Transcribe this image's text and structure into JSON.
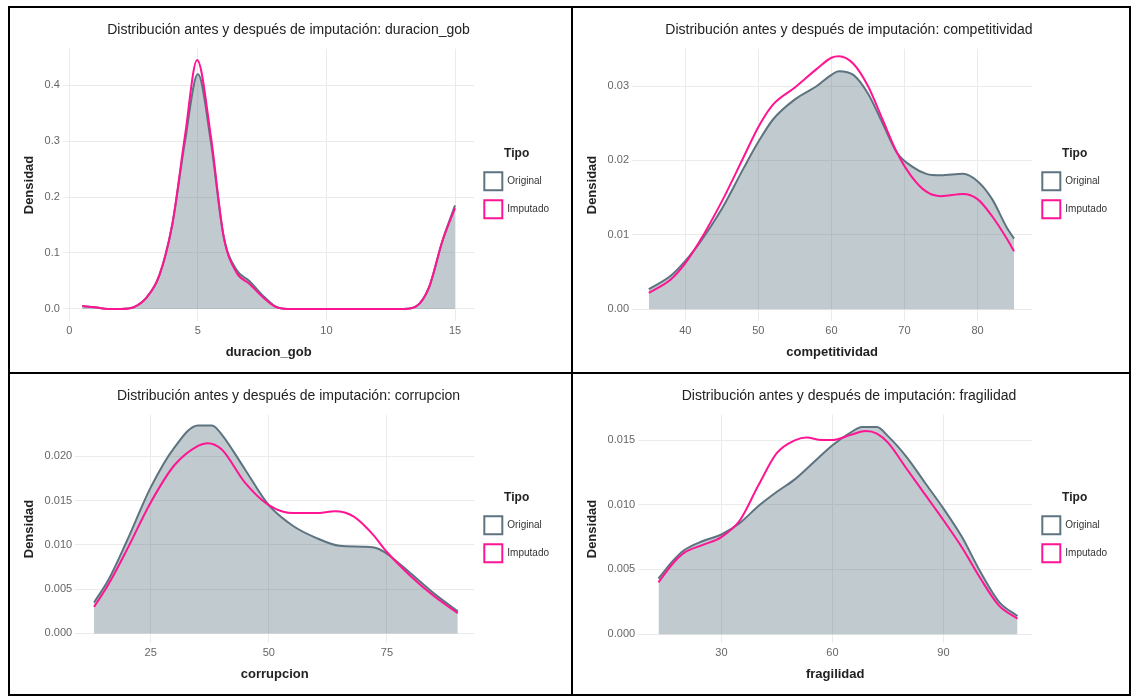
{
  "chart_data": [
    {
      "type": "area",
      "title": "Distribución antes y después de imputación: duracion_gob",
      "xlabel": "duracion_gob",
      "ylabel": "Densidad",
      "legend_title": "Tipo",
      "legend": "right",
      "grid": true,
      "xlim": [
        -0.25,
        15.75
      ],
      "ylim": [
        -0.022,
        0.465
      ],
      "xticks": [
        0,
        5,
        10,
        15
      ],
      "yticks": [
        {
          "value": 0,
          "label": "0.0"
        },
        0.1,
        0.2,
        0.3,
        0.4
      ],
      "series": [
        {
          "name": "Original",
          "color": "#5d7380",
          "x": [
            0.5,
            1,
            1.5,
            2,
            2.5,
            3,
            3.5,
            4,
            4.5,
            5,
            5.5,
            6,
            6.5,
            7,
            7.5,
            8,
            8.5,
            9,
            10,
            11,
            12,
            13,
            13.5,
            14,
            14.5,
            15
          ],
          "values": [
            0.005,
            0.003,
            0,
            0,
            0.003,
            0.02,
            0.06,
            0.15,
            0.3,
            0.42,
            0.3,
            0.13,
            0.07,
            0.05,
            0.025,
            0.005,
            0,
            0,
            0,
            0,
            0,
            0,
            0.005,
            0.04,
            0.12,
            0.185
          ]
        },
        {
          "name": "Imputado",
          "type": "line",
          "color": "#ff1493",
          "x": [
            0.5,
            1,
            1.5,
            2,
            2.5,
            3,
            3.5,
            4,
            4.5,
            4.97,
            5.5,
            6,
            6.5,
            7,
            7.5,
            8,
            8.5,
            9,
            10,
            11,
            12,
            13,
            13.5,
            14,
            14.5,
            15
          ],
          "values": [
            0.005,
            0.003,
            0,
            0,
            0.003,
            0.02,
            0.06,
            0.15,
            0.31,
            0.445,
            0.31,
            0.13,
            0.065,
            0.045,
            0.022,
            0.004,
            0,
            0,
            0,
            0,
            0,
            0,
            0.005,
            0.04,
            0.12,
            0.18
          ]
        }
      ]
    },
    {
      "type": "area",
      "title": "Distribución antes y después de imputación: competitividad",
      "xlabel": "competitividad",
      "ylabel": "Densidad",
      "legend_title": "Tipo",
      "legend": "right",
      "grid": true,
      "xlim": [
        32.7,
        87.5
      ],
      "ylim": [
        -0.0016,
        0.035
      ],
      "xticks": [
        40,
        50,
        60,
        70,
        80
      ],
      "yticks": [
        {
          "value": 0,
          "label": "0.00"
        },
        0.01,
        0.02,
        0.03
      ],
      "series": [
        {
          "name": "Original",
          "color": "#5d7380",
          "x": [
            35,
            38,
            40,
            42,
            45,
            48,
            50,
            52,
            55,
            58,
            60,
            61,
            63,
            65,
            67,
            69,
            71,
            73,
            75,
            78,
            80,
            82,
            84,
            85
          ],
          "values": [
            0.0027,
            0.0045,
            0.0065,
            0.009,
            0.0135,
            0.019,
            0.0225,
            0.0255,
            0.0282,
            0.03,
            0.0315,
            0.032,
            0.0315,
            0.029,
            0.025,
            0.021,
            0.0192,
            0.0182,
            0.018,
            0.0182,
            0.0172,
            0.0148,
            0.011,
            0.0095
          ]
        },
        {
          "name": "Imputado",
          "type": "line",
          "color": "#ff1493",
          "x": [
            35,
            38,
            40,
            42,
            45,
            48,
            50,
            52,
            55,
            58,
            60,
            61,
            63,
            65,
            67,
            69,
            71,
            73,
            75,
            78,
            80,
            82,
            84,
            85
          ],
          "values": [
            0.0022,
            0.004,
            0.0062,
            0.0092,
            0.0145,
            0.0205,
            0.0245,
            0.0275,
            0.0298,
            0.0323,
            0.0338,
            0.034,
            0.033,
            0.03,
            0.0255,
            0.021,
            0.0178,
            0.0158,
            0.0152,
            0.0155,
            0.0148,
            0.0125,
            0.0095,
            0.0078
          ]
        }
      ]
    },
    {
      "type": "area",
      "title": "Distribución antes y después de imputación: corrupcion",
      "xlabel": "corrupcion",
      "ylabel": "Densidad",
      "legend_title": "Tipo",
      "legend": "right",
      "grid": true,
      "xlim": [
        9,
        93.5
      ],
      "ylim": [
        -0.0011,
        0.0247
      ],
      "xticks": [
        25,
        50,
        75
      ],
      "yticks": [
        {
          "value": 0,
          "label": "0.000"
        },
        0.005,
        {
          "value": 0.01,
          "label": "0.010"
        },
        0.015,
        {
          "value": 0.02,
          "label": "0.020"
        }
      ],
      "series": [
        {
          "name": "Original",
          "color": "#5d7380",
          "x": [
            13,
            16,
            20,
            25,
            30,
            35,
            38,
            40,
            45,
            50,
            55,
            60,
            65,
            70,
            73,
            75,
            80,
            85,
            90
          ],
          "values": [
            0.0035,
            0.006,
            0.0105,
            0.0165,
            0.021,
            0.0235,
            0.0235,
            0.0225,
            0.0185,
            0.0145,
            0.0122,
            0.0108,
            0.0099,
            0.0098,
            0.0096,
            0.009,
            0.0068,
            0.0045,
            0.0025
          ]
        },
        {
          "name": "Imputado",
          "type": "line",
          "color": "#ff1493",
          "x": [
            13,
            16,
            20,
            25,
            30,
            35,
            37,
            40,
            45,
            50,
            55,
            60,
            64,
            68,
            72,
            75,
            80,
            85,
            90
          ],
          "values": [
            0.003,
            0.0055,
            0.0095,
            0.0148,
            0.019,
            0.0212,
            0.0215,
            0.0208,
            0.017,
            0.0145,
            0.0136,
            0.0136,
            0.0138,
            0.0132,
            0.0112,
            0.0092,
            0.0065,
            0.0042,
            0.0023
          ]
        }
      ]
    },
    {
      "type": "area",
      "title": "Distribución antes y después de imputación: fragilidad",
      "xlabel": "fragilidad",
      "ylabel": "Densidad",
      "legend_title": "Tipo",
      "legend": "right",
      "grid": true,
      "xlim": [
        7.5,
        114
      ],
      "ylim": [
        -0.0007,
        0.01695
      ],
      "xticks": [
        30,
        60,
        90
      ],
      "yticks": [
        {
          "value": 0,
          "label": "0.000"
        },
        0.005,
        {
          "value": 0.01,
          "label": "0.010"
        },
        0.015
      ],
      "series": [
        {
          "name": "Original",
          "color": "#5d7380",
          "x": [
            13,
            17,
            20,
            25,
            30,
            35,
            40,
            45,
            50,
            55,
            60,
            65,
            68,
            72,
            75,
            80,
            85,
            90,
            95,
            100,
            105,
            110
          ],
          "values": [
            0.0043,
            0.0057,
            0.0065,
            0.0072,
            0.0077,
            0.0086,
            0.0099,
            0.011,
            0.012,
            0.0133,
            0.0146,
            0.0156,
            0.016,
            0.016,
            0.0153,
            0.0137,
            0.0117,
            0.0097,
            0.0075,
            0.0048,
            0.0025,
            0.0014
          ]
        },
        {
          "name": "Imputado",
          "type": "line",
          "color": "#ff1493",
          "x": [
            13,
            17,
            20,
            25,
            30,
            35,
            40,
            45,
            50,
            53,
            57,
            60,
            65,
            69,
            72,
            75,
            80,
            85,
            90,
            95,
            100,
            105,
            110
          ],
          "values": [
            0.004,
            0.0055,
            0.0063,
            0.0069,
            0.0075,
            0.0088,
            0.0115,
            0.014,
            0.015,
            0.0152,
            0.015,
            0.015,
            0.0154,
            0.0157,
            0.0155,
            0.0148,
            0.0128,
            0.0108,
            0.0088,
            0.0067,
            0.0043,
            0.0022,
            0.0012
          ]
        }
      ]
    }
  ]
}
